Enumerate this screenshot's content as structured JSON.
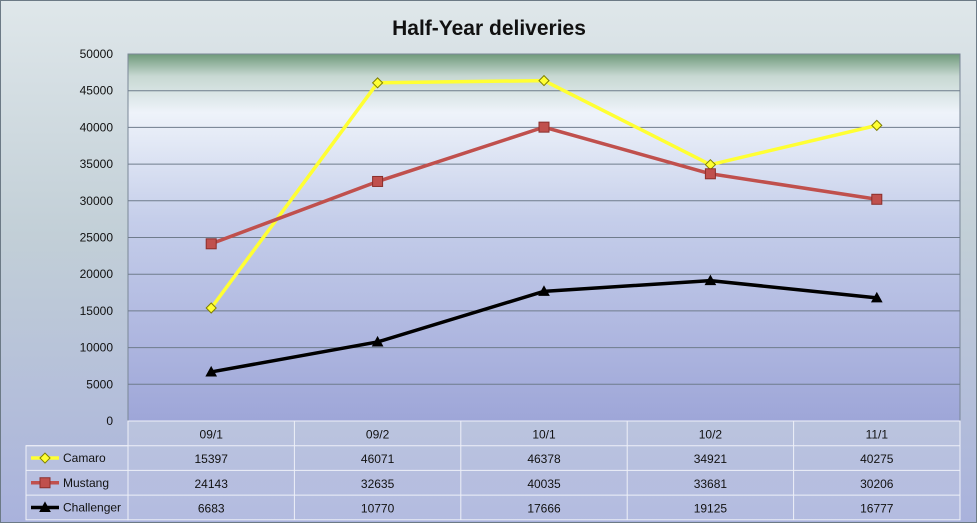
{
  "chart_data": {
    "type": "line",
    "title": "Half-Year deliveries",
    "categories": [
      "09/1",
      "09/2",
      "10/1",
      "10/2",
      "11/1"
    ],
    "ylim": [
      0,
      50000
    ],
    "yticks": [
      0,
      5000,
      10000,
      15000,
      20000,
      25000,
      30000,
      35000,
      40000,
      45000,
      50000
    ],
    "ytick_labels": [
      "0",
      "5000",
      "10000",
      "15000",
      "20000",
      "25000",
      "30000",
      "35000",
      "40000",
      "45000",
      "50000"
    ],
    "grid": true,
    "legend": "data-table",
    "series": [
      {
        "name": "Camaro",
        "values": [
          15397,
          46071,
          46378,
          34921,
          40275
        ],
        "value_labels": [
          "15397",
          "46071",
          "46378",
          "34921",
          "40275"
        ],
        "color": "#ffff33",
        "marker": "diamond"
      },
      {
        "name": "Mustang",
        "values": [
          24143,
          32635,
          40035,
          33681,
          30206
        ],
        "value_labels": [
          "24143",
          "32635",
          "40035",
          "33681",
          "30206"
        ],
        "color": "#c0504d",
        "marker": "square"
      },
      {
        "name": "Challenger",
        "values": [
          6683,
          10770,
          17666,
          19125,
          16777
        ],
        "value_labels": [
          "6683",
          "10770",
          "17666",
          "19125",
          "16777"
        ],
        "color": "#000000",
        "marker": "triangle"
      }
    ]
  }
}
